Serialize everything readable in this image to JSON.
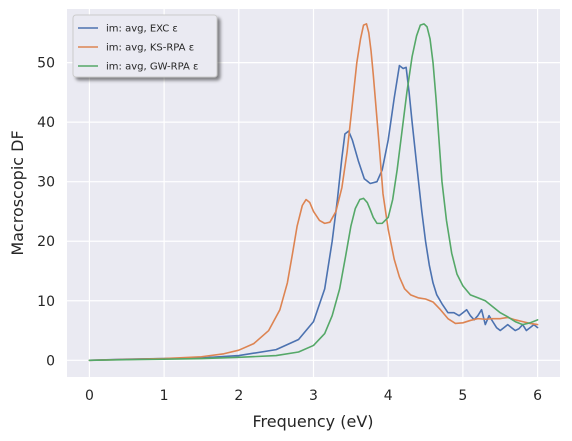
{
  "chart_data": {
    "type": "line",
    "title": "",
    "xlabel": "Frequency (eV)",
    "ylabel": "Macroscopic DF",
    "xlim": [
      -0.3,
      6.3
    ],
    "ylim": [
      -2.8,
      59.0
    ],
    "x_ticks": [
      0,
      1,
      2,
      3,
      4,
      5,
      6
    ],
    "y_ticks": [
      0,
      10,
      20,
      30,
      40,
      50
    ],
    "grid": true,
    "legend_position": "top-left",
    "background_color": "#eaeaf2",
    "series": [
      {
        "name": "im: avg, EXC ε",
        "color": "#4c72b0",
        "x": [
          0.0,
          0.5,
          1.0,
          1.5,
          2.0,
          2.5,
          2.8,
          3.0,
          3.15,
          3.25,
          3.32,
          3.38,
          3.42,
          3.47,
          3.52,
          3.6,
          3.68,
          3.76,
          3.85,
          3.92,
          4.0,
          4.08,
          4.15,
          4.2,
          4.24,
          4.28,
          4.32,
          4.38,
          4.45,
          4.5,
          4.55,
          4.6,
          4.65,
          4.72,
          4.8,
          4.88,
          4.95,
          5.0,
          5.05,
          5.1,
          5.15,
          5.2,
          5.25,
          5.3,
          5.35,
          5.4,
          5.45,
          5.5,
          5.55,
          5.6,
          5.65,
          5.7,
          5.75,
          5.8,
          5.85,
          5.9,
          5.95,
          6.0
        ],
        "y": [
          0.0,
          0.2,
          0.3,
          0.4,
          0.8,
          1.8,
          3.5,
          6.5,
          12.0,
          20.0,
          27.0,
          34.0,
          38.0,
          38.5,
          37.0,
          33.5,
          30.5,
          29.7,
          30.0,
          32.0,
          37.0,
          44.0,
          49.5,
          49.0,
          49.2,
          45.0,
          40.0,
          33.0,
          25.0,
          20.0,
          16.0,
          13.0,
          11.0,
          9.5,
          8.0,
          8.0,
          7.5,
          8.0,
          8.5,
          7.5,
          6.8,
          7.5,
          8.5,
          6.0,
          7.5,
          6.5,
          5.5,
          5.0,
          5.5,
          6.0,
          5.5,
          5.0,
          5.3,
          6.0,
          5.0,
          5.5,
          6.0,
          5.5
        ]
      },
      {
        "name": "im: avg, KS-RPA ε",
        "color": "#dd8452",
        "x": [
          0.0,
          0.5,
          1.0,
          1.5,
          1.8,
          2.0,
          2.2,
          2.4,
          2.55,
          2.65,
          2.72,
          2.78,
          2.85,
          2.9,
          2.95,
          3.0,
          3.08,
          3.15,
          3.22,
          3.3,
          3.38,
          3.45,
          3.52,
          3.58,
          3.63,
          3.67,
          3.71,
          3.74,
          3.77,
          3.8,
          3.84,
          3.88,
          3.93,
          4.0,
          4.08,
          4.15,
          4.22,
          4.3,
          4.4,
          4.5,
          4.6,
          4.7,
          4.8,
          4.9,
          5.0,
          5.1,
          5.2,
          5.3,
          5.4,
          5.5,
          5.6,
          5.7,
          5.8,
          5.9,
          6.0
        ],
        "y": [
          0.0,
          0.15,
          0.3,
          0.6,
          1.1,
          1.7,
          2.8,
          5.0,
          8.5,
          13.0,
          18.0,
          22.5,
          26.0,
          27.0,
          26.5,
          25.0,
          23.5,
          23.0,
          23.2,
          25.0,
          29.0,
          35.0,
          43.0,
          50.0,
          54.0,
          56.3,
          56.5,
          55.0,
          52.0,
          48.0,
          42.0,
          36.0,
          28.0,
          22.0,
          17.0,
          14.0,
          12.0,
          11.0,
          10.5,
          10.3,
          9.8,
          8.5,
          7.0,
          6.2,
          6.3,
          6.7,
          7.0,
          6.9,
          7.0,
          7.0,
          7.2,
          6.8,
          6.5,
          6.2,
          6.0
        ]
      },
      {
        "name": "im: avg, GW-RPA ε",
        "color": "#55a868",
        "x": [
          0.0,
          0.5,
          1.0,
          1.5,
          2.0,
          2.5,
          2.8,
          3.0,
          3.15,
          3.25,
          3.35,
          3.43,
          3.5,
          3.56,
          3.62,
          3.67,
          3.72,
          3.76,
          3.8,
          3.85,
          3.92,
          4.0,
          4.06,
          4.12,
          4.18,
          4.25,
          4.32,
          4.38,
          4.43,
          4.48,
          4.52,
          4.56,
          4.6,
          4.64,
          4.68,
          4.72,
          4.78,
          4.85,
          4.92,
          5.0,
          5.1,
          5.2,
          5.3,
          5.4,
          5.5,
          5.6,
          5.7,
          5.8,
          5.9,
          6.0
        ],
        "y": [
          0.0,
          0.1,
          0.2,
          0.3,
          0.5,
          0.8,
          1.4,
          2.5,
          4.5,
          7.5,
          12.0,
          17.5,
          22.5,
          25.5,
          27.0,
          27.2,
          26.5,
          25.3,
          24.0,
          23.0,
          23.0,
          24.0,
          27.0,
          32.0,
          38.0,
          45.0,
          51.0,
          54.5,
          56.3,
          56.5,
          56.0,
          54.0,
          50.0,
          44.0,
          37.0,
          30.0,
          23.5,
          18.0,
          14.5,
          12.5,
          11.0,
          10.5,
          10.0,
          9.0,
          8.0,
          7.3,
          6.5,
          6.0,
          6.3,
          6.8
        ]
      }
    ]
  }
}
